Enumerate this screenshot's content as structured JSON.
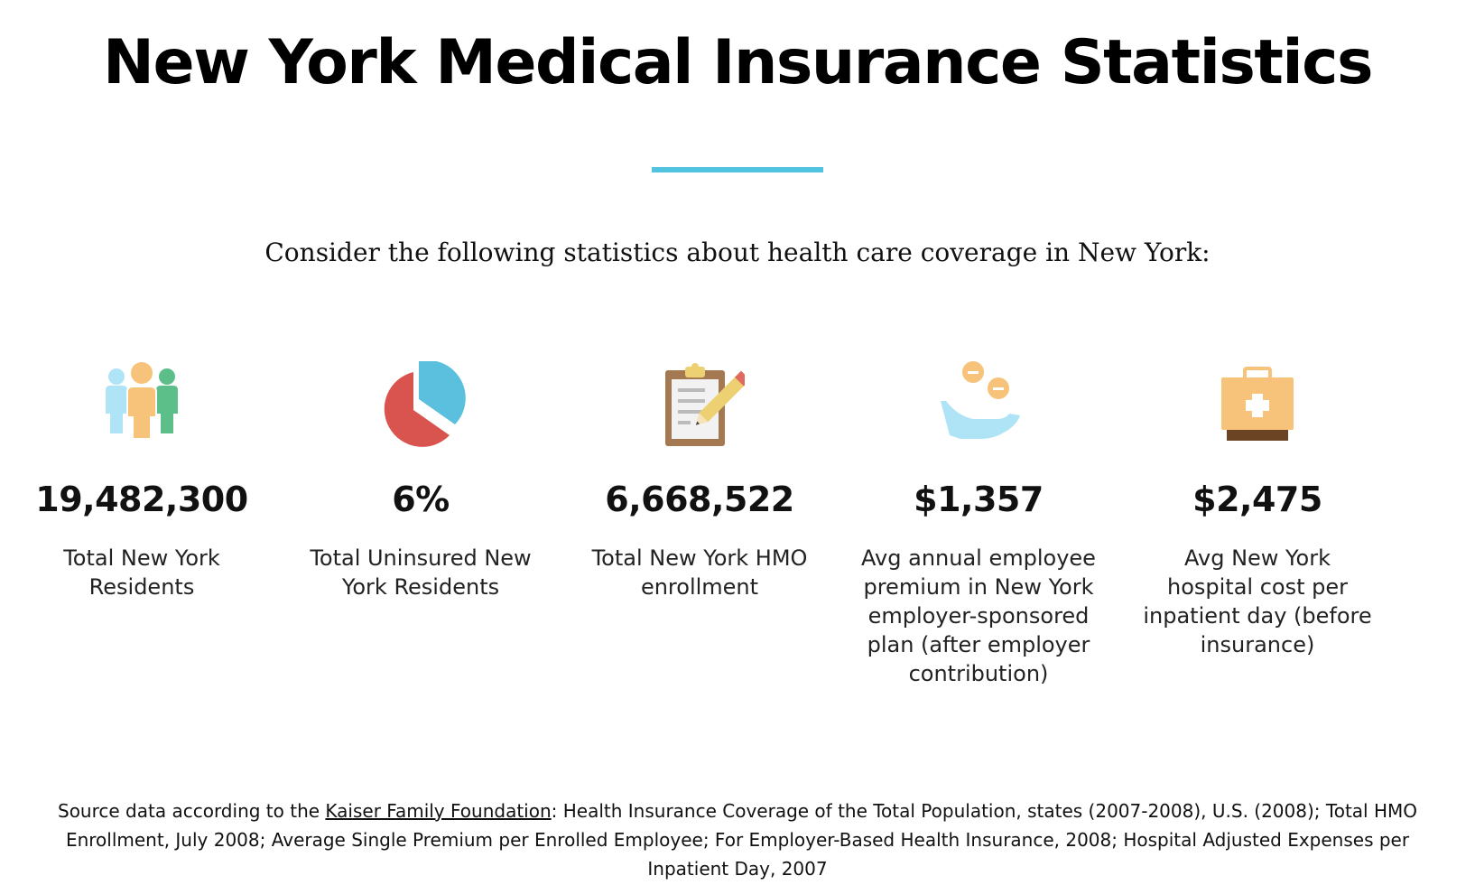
{
  "page": {
    "title": "New York Medical Insurance Statistics",
    "intro": "Consider the following statistics about health care coverage in New York:"
  },
  "stats": [
    {
      "icon": "people-group-icon",
      "value": "19,482,300",
      "label": "Total New York Residents"
    },
    {
      "icon": "pie-chart-icon",
      "value": "6%",
      "label": "Total Uninsured New York Residents"
    },
    {
      "icon": "clipboard-pencil-icon",
      "value": "6,668,522",
      "label": "Total New York HMO enrollment"
    },
    {
      "icon": "hand-coins-icon",
      "value": "$1,357",
      "label": "Avg annual employee premium in New York employer-sponsored plan (after employer contribution)"
    },
    {
      "icon": "medical-kit-icon",
      "value": "$2,475",
      "label": "Avg New York hospital cost per inpatient day (before insurance)"
    }
  ],
  "source": {
    "prefix": "Source data according to the ",
    "link_text": "Kaiser Family Foundation",
    "suffix": ": Health Insurance Coverage of the Total Population, states (2007-2008), U.S. (2008); Total HMO Enrollment, July 2008; Average Single Premium per Enrolled Employee; For Employer-Based Health Insurance, 2008; Hospital Adjusted Expenses per Inpatient Day, 2007"
  },
  "colors": {
    "accent": "#4fc3e0",
    "pie_red": "#d9534f",
    "pie_blue": "#5bc0de",
    "person_light_blue": "#aee4f5",
    "person_orange": "#f7c37a",
    "person_green": "#5cbf8a",
    "clipboard_brown": "#a47850",
    "pencil_yellow": "#ecd071",
    "hand_blue": "#aee4f5",
    "coin_orange": "#f7c37a",
    "kit_orange": "#f7c37a",
    "kit_base_brown": "#6b4423"
  }
}
